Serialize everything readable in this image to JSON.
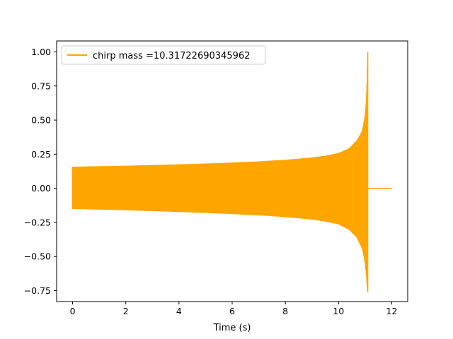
{
  "chart_data": {
    "type": "line",
    "title": "",
    "xlabel": "Time (s)",
    "ylabel": "",
    "xlim": [
      -0.6,
      12.6
    ],
    "ylim": [
      -0.83,
      1.08
    ],
    "x_ticks": [
      0,
      2,
      4,
      6,
      8,
      10,
      12
    ],
    "x_tick_labels": [
      "0",
      "2",
      "4",
      "6",
      "8",
      "10",
      "12"
    ],
    "y_ticks": [
      -0.75,
      -0.5,
      -0.25,
      0.0,
      0.25,
      0.5,
      0.75,
      1.0
    ],
    "y_tick_labels": [
      "−0.75",
      "−0.50",
      "−0.25",
      "0.00",
      "0.25",
      "0.50",
      "0.75",
      "1.00"
    ],
    "grid": false,
    "legend_position": "top-left",
    "series": [
      {
        "name": "chirp mass =10.31722690345962",
        "color": "#ffa500",
        "envelope_upper": {
          "x": [
            0.0,
            1,
            2,
            3,
            4,
            5,
            6,
            7,
            8,
            9,
            9.5,
            10,
            10.4,
            10.7,
            10.9,
            11.0,
            11.05,
            11.08,
            11.1
          ],
          "y": [
            0.155,
            0.158,
            0.162,
            0.167,
            0.172,
            0.178,
            0.185,
            0.194,
            0.205,
            0.222,
            0.235,
            0.255,
            0.29,
            0.35,
            0.42,
            0.53,
            0.65,
            0.8,
            1.0
          ]
        },
        "envelope_lower": {
          "x": [
            0.0,
            1,
            2,
            3,
            4,
            5,
            6,
            7,
            8,
            9,
            9.5,
            10,
            10.4,
            10.7,
            10.9,
            11.0,
            11.05,
            11.08,
            11.1
          ],
          "y": [
            -0.148,
            -0.152,
            -0.157,
            -0.163,
            -0.17,
            -0.177,
            -0.185,
            -0.195,
            -0.207,
            -0.225,
            -0.24,
            -0.26,
            -0.3,
            -0.36,
            -0.44,
            -0.54,
            -0.63,
            -0.72,
            -0.76
          ]
        },
        "tail": {
          "x": [
            11.1,
            12.0
          ],
          "y": [
            0.0,
            0.0
          ]
        }
      }
    ]
  }
}
